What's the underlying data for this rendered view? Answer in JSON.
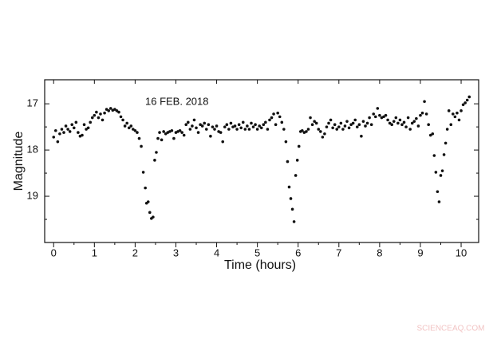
{
  "chart_data": {
    "type": "scatter",
    "annotation": "16 FEB. 2018",
    "x_label": "Time (hours)",
    "y_label": "Magnitude",
    "watermark": "SCIENCEAQ.COM",
    "color": "#111111",
    "xlim": [
      -0.22,
      10.43
    ],
    "ylim": [
      16.48,
      20.0
    ],
    "y_inverted": true,
    "xticks": [
      0,
      1,
      2,
      3,
      4,
      5,
      6,
      7,
      8,
      9,
      10
    ],
    "xminorticks": [
      0.5,
      1.5,
      2.5,
      3.5,
      4.5,
      5.5,
      6.5,
      7.5,
      8.5,
      9.5
    ],
    "yticks": [
      17,
      18,
      19
    ],
    "yminorticks": [
      17.5,
      18.5,
      19.5
    ],
    "x": [
      0.0,
      0.05,
      0.1,
      0.15,
      0.2,
      0.25,
      0.3,
      0.35,
      0.4,
      0.45,
      0.5,
      0.55,
      0.6,
      0.65,
      0.7,
      0.75,
      0.8,
      0.85,
      0.9,
      0.95,
      1.0,
      1.05,
      1.1,
      1.15,
      1.2,
      1.25,
      1.3,
      1.35,
      1.4,
      1.45,
      1.5,
      1.55,
      1.6,
      1.65,
      1.7,
      1.75,
      1.8,
      1.85,
      1.9,
      1.95,
      2.0,
      2.05,
      2.1,
      2.15,
      2.2,
      2.25,
      2.28,
      2.32,
      2.36,
      2.4,
      2.44,
      2.48,
      2.52,
      2.56,
      2.6,
      2.65,
      2.7,
      2.75,
      2.8,
      2.85,
      2.9,
      2.95,
      3.0,
      3.05,
      3.1,
      3.15,
      3.2,
      3.25,
      3.3,
      3.35,
      3.4,
      3.45,
      3.5,
      3.55,
      3.6,
      3.65,
      3.7,
      3.75,
      3.8,
      3.85,
      3.9,
      3.95,
      4.0,
      4.05,
      4.1,
      4.15,
      4.2,
      4.25,
      4.3,
      4.35,
      4.4,
      4.45,
      4.5,
      4.55,
      4.6,
      4.65,
      4.7,
      4.75,
      4.8,
      4.85,
      4.9,
      4.95,
      5.0,
      5.05,
      5.1,
      5.15,
      5.2,
      5.25,
      5.3,
      5.35,
      5.4,
      5.45,
      5.5,
      5.55,
      5.6,
      5.65,
      5.7,
      5.74,
      5.78,
      5.82,
      5.86,
      5.9,
      5.94,
      5.98,
      6.02,
      6.06,
      6.1,
      6.15,
      6.2,
      6.25,
      6.3,
      6.35,
      6.4,
      6.45,
      6.5,
      6.55,
      6.6,
      6.65,
      6.7,
      6.75,
      6.8,
      6.85,
      6.9,
      6.95,
      7.0,
      7.05,
      7.1,
      7.15,
      7.2,
      7.25,
      7.3,
      7.35,
      7.4,
      7.45,
      7.5,
      7.55,
      7.6,
      7.65,
      7.7,
      7.75,
      7.8,
      7.85,
      7.9,
      7.95,
      8.0,
      8.05,
      8.1,
      8.15,
      8.2,
      8.25,
      8.3,
      8.35,
      8.4,
      8.45,
      8.5,
      8.55,
      8.6,
      8.65,
      8.7,
      8.75,
      8.8,
      8.85,
      8.9,
      8.95,
      9.0,
      9.05,
      9.1,
      9.15,
      9.2,
      9.25,
      9.3,
      9.34,
      9.38,
      9.42,
      9.46,
      9.5,
      9.54,
      9.58,
      9.62,
      9.66,
      9.7,
      9.75,
      9.8,
      9.85,
      9.9,
      9.95,
      10.0,
      10.05,
      10.1,
      10.15,
      10.2
    ],
    "values": [
      17.72,
      17.58,
      17.82,
      17.65,
      17.55,
      17.62,
      17.48,
      17.55,
      17.6,
      17.45,
      17.52,
      17.4,
      17.62,
      17.7,
      17.68,
      17.45,
      17.55,
      17.52,
      17.4,
      17.3,
      17.25,
      17.18,
      17.3,
      17.22,
      17.35,
      17.2,
      17.12,
      17.15,
      17.1,
      17.14,
      17.12,
      17.15,
      17.18,
      17.28,
      17.35,
      17.48,
      17.42,
      17.52,
      17.48,
      17.55,
      17.58,
      17.62,
      17.75,
      17.92,
      18.48,
      18.82,
      19.15,
      19.12,
      19.35,
      19.48,
      19.45,
      18.22,
      18.05,
      17.75,
      17.62,
      17.78,
      17.6,
      17.65,
      17.62,
      17.6,
      17.58,
      17.75,
      17.62,
      17.6,
      17.58,
      17.62,
      17.68,
      17.45,
      17.4,
      17.55,
      17.48,
      17.35,
      17.52,
      17.62,
      17.45,
      17.48,
      17.42,
      17.55,
      17.45,
      17.7,
      17.5,
      17.55,
      17.48,
      17.6,
      17.62,
      17.82,
      17.5,
      17.45,
      17.55,
      17.42,
      17.5,
      17.48,
      17.55,
      17.45,
      17.52,
      17.4,
      17.55,
      17.48,
      17.55,
      17.42,
      17.5,
      17.45,
      17.55,
      17.48,
      17.52,
      17.45,
      17.4,
      17.55,
      17.35,
      17.3,
      17.22,
      17.45,
      17.2,
      17.28,
      17.4,
      17.55,
      17.82,
      18.25,
      18.8,
      19.05,
      19.28,
      19.55,
      18.55,
      18.22,
      17.92,
      17.6,
      17.58,
      17.62,
      17.6,
      17.55,
      17.3,
      17.45,
      17.38,
      17.42,
      17.55,
      17.6,
      17.72,
      17.65,
      17.5,
      17.42,
      17.35,
      17.52,
      17.45,
      17.55,
      17.5,
      17.42,
      17.55,
      17.48,
      17.38,
      17.52,
      17.45,
      17.42,
      17.35,
      17.5,
      17.45,
      17.7,
      17.38,
      17.48,
      17.42,
      17.3,
      17.45,
      17.22,
      17.28,
      17.1,
      17.25,
      17.3,
      17.28,
      17.25,
      17.35,
      17.42,
      17.45,
      17.38,
      17.3,
      17.42,
      17.35,
      17.45,
      17.4,
      17.5,
      17.3,
      17.55,
      17.42,
      17.38,
      17.32,
      17.48,
      17.25,
      17.2,
      16.95,
      17.22,
      17.45,
      17.68,
      17.65,
      18.12,
      18.48,
      18.9,
      19.12,
      18.55,
      18.45,
      18.1,
      17.85,
      17.55,
      17.15,
      17.45,
      17.22,
      17.28,
      17.2,
      17.35,
      17.15,
      17.02,
      16.98,
      16.92,
      16.85
    ]
  }
}
